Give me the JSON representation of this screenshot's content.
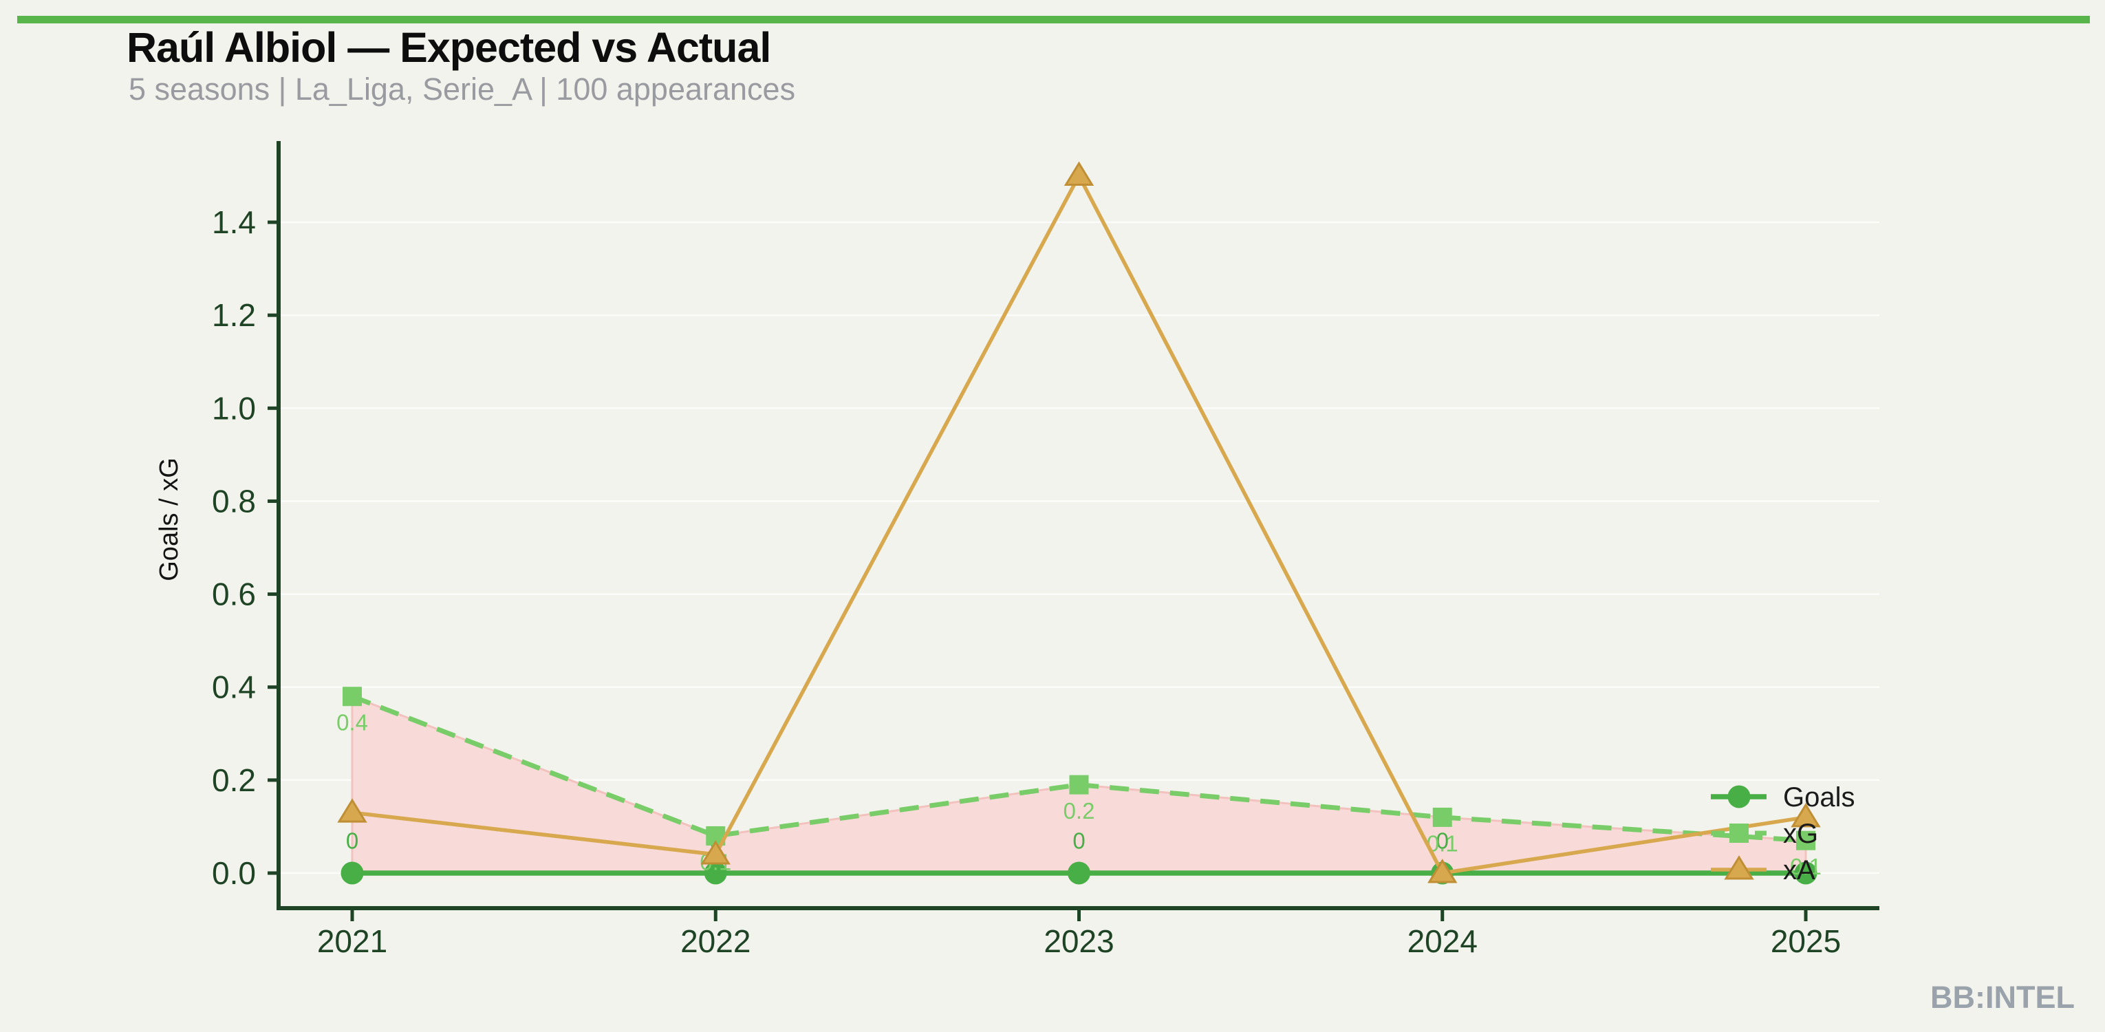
{
  "page": {
    "watermark": "BB:INTEL",
    "background_color": "#f2f3ec",
    "accent_color": "#57b54b",
    "axis_color": "#1e4425",
    "subtitle_color": "#9a9aa1",
    "watermark_color": "#9aa2ab",
    "ylabel_color": "#141414",
    "legend_text_color": "#1b1b1b"
  },
  "header": {
    "title": "Raúl Albiol — Expected vs Actual",
    "subtitle": "5 seasons | La_Liga, Serie_A | 100 appearances"
  },
  "chart_data": {
    "type": "line",
    "title": "Raúl Albiol — Expected vs Actual",
    "subtitle": "5 seasons | La_Liga, Serie_A | 100 appearances",
    "xlabel": "",
    "ylabel": "Goals / xG",
    "categories": [
      2021,
      2022,
      2023,
      2024,
      2025
    ],
    "x_tick_labels": [
      "2021",
      "2022",
      "2023",
      "2024",
      "2025"
    ],
    "y_ticks": [
      0.0,
      0.2,
      0.4,
      0.6,
      0.8,
      1.0,
      1.2,
      1.4
    ],
    "y_tick_labels": [
      "0.0",
      "0.2",
      "0.4",
      "0.6",
      "0.8",
      "1.0",
      "1.2",
      "1.4"
    ],
    "ylim": [
      0,
      1.575
    ],
    "grid": "horizontal-subtle",
    "legend_position": "right-inside",
    "series": [
      {
        "name": "Goals",
        "values": [
          0,
          0,
          0,
          0,
          0
        ],
        "data_labels": [
          "0",
          "0",
          "0",
          "0",
          "0"
        ],
        "color": "#48ae46",
        "line_style": "solid",
        "marker": "circle"
      },
      {
        "name": "xG",
        "values": [
          0.38,
          0.08,
          0.19,
          0.12,
          0.07
        ],
        "data_labels": [
          "0.4",
          "0.1",
          "0.2",
          "0.1",
          "0.1"
        ],
        "color": "#78cd68",
        "line_style": "dashed",
        "marker": "square"
      },
      {
        "name": "xA",
        "values": [
          0.13,
          0.04,
          1.5,
          0,
          0.12
        ],
        "data_labels": [],
        "color": "#d8a84f",
        "marker_edge_color": "#c08f35",
        "line_style": "solid",
        "marker": "triangle"
      }
    ],
    "fill_between": {
      "upper": "xG",
      "lower": "Goals",
      "fill_color": "#f8dad8",
      "edge_color": "#f3c2be"
    }
  }
}
